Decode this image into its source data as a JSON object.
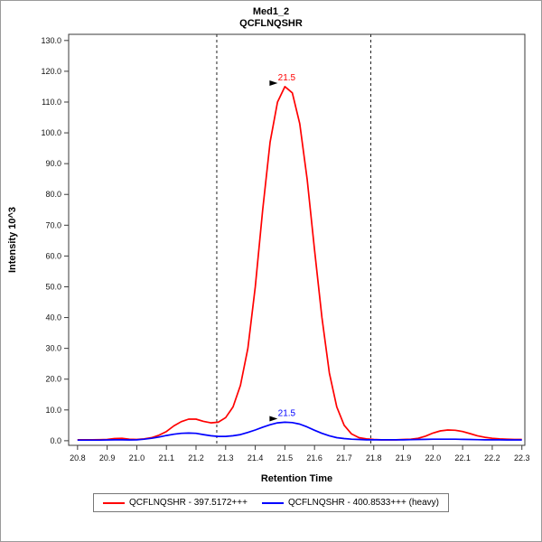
{
  "chart_data": {
    "type": "line",
    "title": "Med1_2",
    "subtitle": "QCFLNQSHR",
    "xlabel": "Retention Time",
    "ylabel": "Intensity 10^3",
    "xlim": [
      20.77,
      22.31
    ],
    "ylim": [
      -1.5,
      132
    ],
    "xticks": [
      20.8,
      20.9,
      21.0,
      21.1,
      21.2,
      21.3,
      21.4,
      21.5,
      21.6,
      21.7,
      21.8,
      21.9,
      22.0,
      22.1,
      22.2,
      22.3
    ],
    "yticks": [
      0,
      10,
      20,
      30,
      40,
      50,
      60,
      70,
      80,
      90,
      100,
      110,
      120,
      130
    ],
    "grid": false,
    "legend_position": "bottom",
    "boundaries": [
      21.27,
      21.79
    ],
    "x": [
      20.8,
      20.825,
      20.85,
      20.875,
      20.9,
      20.925,
      20.95,
      20.975,
      21.0,
      21.025,
      21.05,
      21.075,
      21.1,
      21.125,
      21.15,
      21.175,
      21.2,
      21.225,
      21.25,
      21.275,
      21.3,
      21.325,
      21.35,
      21.375,
      21.4,
      21.425,
      21.45,
      21.475,
      21.5,
      21.525,
      21.55,
      21.575,
      21.6,
      21.625,
      21.65,
      21.675,
      21.7,
      21.725,
      21.75,
      21.775,
      21.8,
      21.825,
      21.85,
      21.875,
      21.9,
      21.925,
      21.95,
      21.975,
      22.0,
      22.025,
      22.05,
      22.075,
      22.1,
      22.125,
      22.15,
      22.175,
      22.2,
      22.225,
      22.25,
      22.275,
      22.3
    ],
    "series": [
      {
        "name": "QCFLNQSHR - 397.5172+++",
        "color": "#ff0000",
        "peak_label": "21.5",
        "values": [
          0.3,
          0.3,
          0.3,
          0.35,
          0.4,
          0.7,
          0.8,
          0.5,
          0.4,
          0.6,
          1.0,
          1.8,
          3.0,
          4.8,
          6.2,
          7.0,
          7.0,
          6.3,
          5.8,
          6.0,
          7.5,
          11.0,
          18.0,
          30.0,
          50.0,
          75.0,
          97.0,
          110.0,
          115.0,
          113.0,
          103.0,
          85.0,
          62.0,
          40.0,
          22.0,
          11.0,
          5.0,
          2.2,
          1.0,
          0.6,
          0.4,
          0.3,
          0.3,
          0.3,
          0.4,
          0.5,
          0.8,
          1.5,
          2.5,
          3.2,
          3.5,
          3.4,
          3.0,
          2.3,
          1.6,
          1.1,
          0.8,
          0.6,
          0.5,
          0.4,
          0.4
        ]
      },
      {
        "name": "QCFLNQSHR - 400.8533+++ (heavy)",
        "color": "#0000ff",
        "peak_label": "21.5",
        "values": [
          0.2,
          0.2,
          0.2,
          0.2,
          0.25,
          0.3,
          0.3,
          0.25,
          0.3,
          0.5,
          0.8,
          1.2,
          1.7,
          2.1,
          2.4,
          2.5,
          2.4,
          2.0,
          1.6,
          1.4,
          1.4,
          1.6,
          2.0,
          2.7,
          3.5,
          4.4,
          5.2,
          5.8,
          6.0,
          5.9,
          5.4,
          4.5,
          3.4,
          2.4,
          1.6,
          1.0,
          0.7,
          0.5,
          0.4,
          0.3,
          0.3,
          0.3,
          0.3,
          0.3,
          0.3,
          0.35,
          0.4,
          0.45,
          0.5,
          0.5,
          0.5,
          0.5,
          0.45,
          0.4,
          0.35,
          0.3,
          0.3,
          0.3,
          0.25,
          0.25,
          0.25
        ]
      }
    ],
    "annotations": [
      {
        "text": "21.5",
        "x": 21.5,
        "y": 115,
        "color": "#ff0000"
      },
      {
        "text": "21.5",
        "x": 21.5,
        "y": 6.0,
        "color": "#0000ff"
      }
    ]
  }
}
